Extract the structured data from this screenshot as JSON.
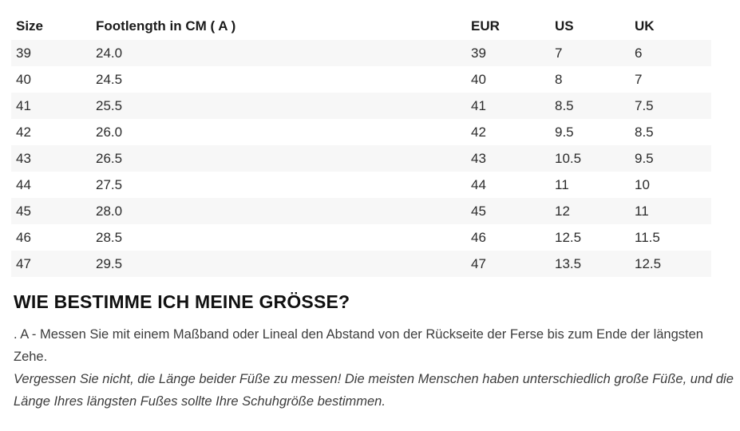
{
  "size_chart": {
    "headers": [
      "Size",
      "Footlength in CM ( A )",
      "EUR",
      "US",
      "UK"
    ],
    "rows": [
      [
        "39",
        "24.0",
        "39",
        "7",
        "6"
      ],
      [
        "40",
        "24.5",
        "40",
        "8",
        "7"
      ],
      [
        "41",
        "25.5",
        "41",
        "8.5",
        "7.5"
      ],
      [
        "42",
        "26.0",
        "42",
        "9.5",
        "8.5"
      ],
      [
        "43",
        "26.5",
        "43",
        "10.5",
        "9.5"
      ],
      [
        "44",
        "27.5",
        "44",
        "11",
        "10"
      ],
      [
        "45",
        "28.0",
        "45",
        "12",
        "11"
      ],
      [
        "46",
        "28.5",
        "46",
        "12.5",
        "11.5"
      ],
      [
        "47",
        "29.5",
        "47",
        "13.5",
        "12.5"
      ]
    ],
    "stripe_color": "#f7f7f7"
  },
  "info_section": {
    "heading": "WIE BESTIMME ICH MEINE GRÖSSE?",
    "measure_instruction": ". A - Messen Sie mit einem Maßband oder Lineal den Abstand von der Rückseite der Ferse bis zum Ende der längsten Zehe.",
    "note_italic": "Vergessen Sie nicht, die Länge beider Füße zu messen! Die meisten Menschen haben unterschiedlich große Füße, und die Länge Ihres längsten Fußes sollte Ihre Schuhgröße bestimmen."
  }
}
